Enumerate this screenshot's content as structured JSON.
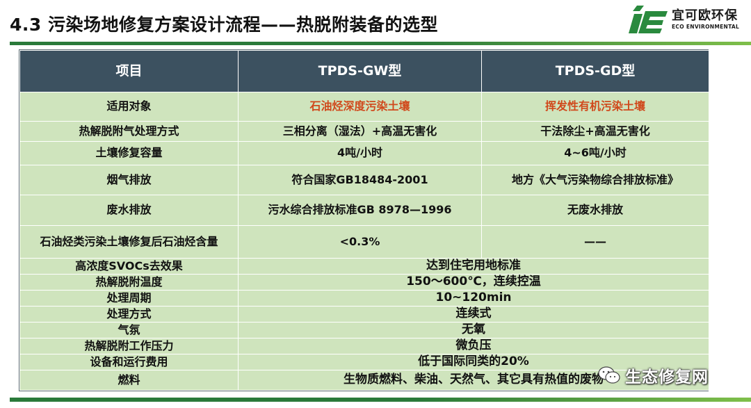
{
  "header": {
    "title": "4.3 污染场地修复方案设计流程——热脱附装备的选型",
    "logo_cn": "宜可欧环保",
    "logo_en": "ECO ENVIRONMENTAL",
    "logo_icon": "ie-logo-icon"
  },
  "colors": {
    "header_bg": "#3c5160",
    "cell_bg": "#cfe4bd",
    "highlight": "#d0491c",
    "brand_green": "#2a7a3a"
  },
  "table": {
    "headers": [
      "项目",
      "TPDS-GW型",
      "TPDS-GD型"
    ],
    "rows": [
      {
        "label": "适用对象",
        "gw": "石油烃深度污染土壤",
        "gd": "挥发性有机污染土壤"
      },
      {
        "label": "热解脱附气处理方式",
        "gw": "三相分离（湿法）+高温无害化",
        "gd": "干法除尘+高温无害化"
      },
      {
        "label": "土壤修复容量",
        "gw": "4吨/小时",
        "gd": "4~6吨/小时"
      },
      {
        "label": "烟气排放",
        "gw": "符合国家GB18484-2001",
        "gd": "地方《大气污染物综合排放标准》"
      },
      {
        "label": "废水排放",
        "gw": "污水综合排放标准GB 8978—1996",
        "gd": "无废水排放"
      },
      {
        "label": "石油烃类污染土壤修复后石油烃含量",
        "gw": "<0.3%",
        "gd": "——"
      }
    ],
    "merged_rows": [
      {
        "label": "高浓度SVOCs去效果",
        "value": "达到住宅用地标准"
      },
      {
        "label": "热解脱附温度",
        "value": "150～600℃，连续控温"
      },
      {
        "label": "处理周期",
        "value": "10~120min"
      },
      {
        "label": "处理方式",
        "value": "连续式"
      },
      {
        "label": "气氛",
        "value": "无氧"
      },
      {
        "label": "热解脱附工作压力",
        "value": "微负压"
      },
      {
        "label": "设备和运行费用",
        "value": "低于国际同类的20%"
      },
      {
        "label": "燃料",
        "value": "生物质燃料、柴油、天然气、其它具有热值的废物"
      }
    ]
  },
  "watermark": {
    "text": "生态修复网",
    "icon": "wechat-icon"
  }
}
